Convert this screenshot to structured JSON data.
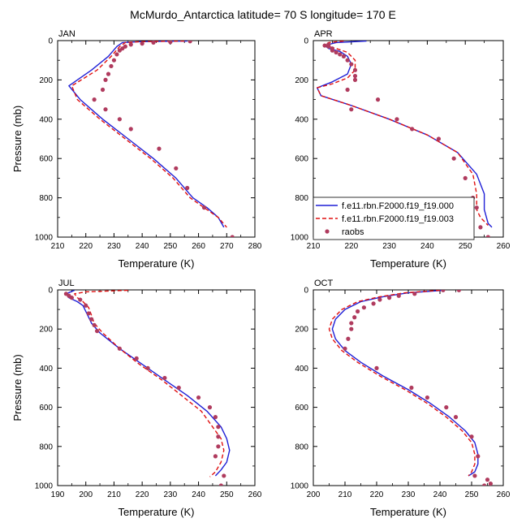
{
  "title": "McMurdo_Antarctica  latitude= 70 S longitude= 170 E",
  "legend": {
    "entries": [
      {
        "label": "f.e11.rbn.F2000.f19_f19.000",
        "color": "#1f1fd6",
        "style": "solid"
      },
      {
        "label": "f.e11.rbn.F2000.f19_f19.003",
        "color": "#e01010",
        "style": "dashed"
      },
      {
        "label": "raobs",
        "color": "#b03b5e",
        "style": "marker"
      }
    ]
  },
  "chart_data": [
    {
      "type": "line",
      "title": "JAN",
      "xlabel": "Temperature (K)",
      "ylabel": "Pressure (mb)",
      "xlim": [
        210,
        280
      ],
      "ylim": [
        1000,
        0
      ],
      "xticks": [
        "210",
        "220",
        "230",
        "240",
        "250",
        "260",
        "270",
        "280"
      ],
      "yticks": [
        "0",
        "200",
        "400",
        "600",
        "800",
        "1000"
      ],
      "series": [
        {
          "name": "f.e11.rbn.F2000.f19_f19.000",
          "color": "#1f1fd6",
          "dash": false,
          "x": [
            256,
            240,
            233,
            231,
            228,
            222,
            214,
            218,
            226,
            235,
            244,
            252,
            258,
            263,
            267,
            269
          ],
          "y": [
            2,
            5,
            10,
            30,
            80,
            150,
            230,
            300,
            400,
            500,
            600,
            700,
            800,
            850,
            900,
            950
          ]
        },
        {
          "name": "f.e11.rbn.F2000.f19_f19.003",
          "color": "#e01010",
          "dash": true,
          "x": [
            255,
            240,
            234,
            232,
            229,
            224,
            215,
            217,
            225,
            234,
            243,
            251,
            257,
            262,
            267,
            270
          ],
          "y": [
            2,
            5,
            10,
            30,
            80,
            150,
            230,
            300,
            400,
            500,
            600,
            700,
            800,
            850,
            900,
            950
          ]
        },
        {
          "name": "raobs",
          "color": "#b03b5e",
          "marker": true,
          "x": [
            257,
            250,
            244,
            240,
            236,
            234,
            233,
            232,
            231,
            230,
            229,
            228,
            227,
            226,
            227,
            223,
            232,
            236,
            246,
            252,
            256,
            262,
            272
          ],
          "y": [
            3,
            7,
            10,
            15,
            20,
            30,
            40,
            50,
            70,
            100,
            130,
            170,
            200,
            250,
            350,
            300,
            400,
            450,
            550,
            650,
            750,
            850,
            1000
          ]
        }
      ]
    },
    {
      "type": "line",
      "title": "APR",
      "xlabel": "Temperature (K)",
      "ylabel": "",
      "xlim": [
        210,
        260
      ],
      "ylim": [
        1000,
        0
      ],
      "xticks": [
        "210",
        "220",
        "230",
        "240",
        "250",
        "260"
      ],
      "yticks": [
        "0",
        "200",
        "400",
        "600",
        "800",
        "1000"
      ],
      "series": [
        {
          "name": "f.e11.rbn.F2000.f19_f19.000",
          "color": "#1f1fd6",
          "dash": false,
          "x": [
            224,
            216,
            213,
            214,
            217,
            219,
            220,
            219,
            215,
            211,
            212,
            220,
            230,
            240,
            248,
            253,
            255,
            255,
            256,
            257
          ],
          "y": [
            2,
            10,
            25,
            40,
            55,
            80,
            120,
            170,
            210,
            240,
            280,
            330,
            400,
            480,
            570,
            680,
            780,
            860,
            930,
            950
          ]
        },
        {
          "name": "f.e11.rbn.F2000.f19_f19.003",
          "color": "#e01010",
          "dash": true,
          "x": [
            218,
            214,
            213,
            216,
            219,
            221,
            221,
            219,
            215,
            211,
            212,
            220,
            230,
            240,
            248,
            252,
            253,
            253,
            254,
            256
          ],
          "y": [
            2,
            10,
            25,
            40,
            60,
            100,
            150,
            190,
            220,
            240,
            280,
            330,
            400,
            480,
            570,
            680,
            780,
            860,
            900,
            940
          ]
        },
        {
          "name": "raobs",
          "color": "#b03b5e",
          "marker": true,
          "x": [
            214,
            213,
            214,
            215,
            215,
            216,
            217,
            218,
            219,
            220,
            221,
            221,
            221,
            219,
            220,
            227,
            232,
            236,
            243,
            247,
            250,
            252,
            253,
            254,
            256
          ],
          "y": [
            20,
            25,
            30,
            40,
            50,
            60,
            70,
            80,
            100,
            120,
            150,
            180,
            200,
            250,
            350,
            300,
            400,
            450,
            500,
            600,
            700,
            800,
            850,
            950,
            1000
          ]
        }
      ]
    },
    {
      "type": "line",
      "title": "JUL",
      "xlabel": "Temperature (K)",
      "ylabel": "Pressure (mb)",
      "xlim": [
        190,
        260
      ],
      "ylim": [
        1000,
        0
      ],
      "xticks": [
        "190",
        "200",
        "210",
        "220",
        "230",
        "240",
        "250",
        "260"
      ],
      "yticks": [
        "0",
        "200",
        "400",
        "600",
        "800",
        "1000"
      ],
      "series": [
        {
          "name": "f.e11.rbn.F2000.f19_f19.000",
          "color": "#1f1fd6",
          "dash": false,
          "x": [
            196,
            193,
            194,
            197,
            199,
            200,
            201,
            202,
            205,
            212,
            220,
            228,
            236,
            243,
            248,
            250,
            251,
            250,
            248,
            246
          ],
          "y": [
            2,
            20,
            40,
            60,
            80,
            110,
            140,
            170,
            220,
            300,
            380,
            460,
            540,
            620,
            700,
            760,
            820,
            880,
            920,
            950
          ]
        },
        {
          "name": "f.e11.rbn.F2000.f19_f19.003",
          "color": "#e01010",
          "dash": true,
          "x": [
            215,
            200,
            196,
            197,
            199,
            201,
            202,
            203,
            206,
            212,
            219,
            227,
            234,
            241,
            245,
            248,
            249,
            248,
            246,
            244
          ],
          "y": [
            2,
            10,
            20,
            40,
            60,
            90,
            130,
            170,
            220,
            300,
            380,
            460,
            540,
            620,
            700,
            760,
            820,
            880,
            930,
            955
          ]
        },
        {
          "name": "raobs",
          "color": "#b03b5e",
          "marker": true,
          "x": [
            193,
            194,
            195,
            198,
            200,
            201,
            202,
            203,
            204,
            212,
            218,
            222,
            228,
            233,
            240,
            244,
            246,
            247,
            247,
            247,
            246,
            249,
            248
          ],
          "y": [
            20,
            30,
            40,
            50,
            80,
            120,
            150,
            180,
            210,
            300,
            350,
            400,
            450,
            500,
            550,
            600,
            650,
            700,
            750,
            800,
            850,
            950,
            1000
          ]
        }
      ]
    },
    {
      "type": "line",
      "title": "OCT",
      "xlabel": "Temperature (K)",
      "ylabel": "",
      "xlim": [
        200,
        260
      ],
      "ylim": [
        1000,
        0
      ],
      "xticks": [
        "200",
        "210",
        "220",
        "230",
        "240",
        "250",
        "260"
      ],
      "yticks": [
        "0",
        "200",
        "400",
        "600",
        "800",
        "1000"
      ],
      "series": [
        {
          "name": "f.e11.rbn.F2000.f19_f19.000",
          "color": "#1f1fd6",
          "dash": false,
          "x": [
            241,
            230,
            222,
            215,
            210,
            207,
            206,
            207,
            210,
            215,
            222,
            230,
            237,
            243,
            248,
            251,
            252,
            252,
            251,
            249
          ],
          "y": [
            2,
            15,
            35,
            60,
            100,
            150,
            200,
            250,
            310,
            370,
            440,
            510,
            580,
            650,
            720,
            780,
            840,
            890,
            930,
            950
          ]
        },
        {
          "name": "f.e11.rbn.F2000.f19_f19.003",
          "color": "#e01010",
          "dash": true,
          "x": [
            240,
            229,
            221,
            214,
            209,
            206,
            205,
            206,
            209,
            214,
            221,
            229,
            236,
            242,
            247,
            250,
            251,
            251,
            250,
            249
          ],
          "y": [
            2,
            15,
            35,
            60,
            100,
            150,
            200,
            250,
            310,
            370,
            440,
            510,
            580,
            650,
            720,
            780,
            840,
            890,
            930,
            950
          ]
        },
        {
          "name": "raobs",
          "color": "#b03b5e",
          "marker": true,
          "x": [
            246,
            241,
            232,
            227,
            224,
            221,
            219,
            216,
            214,
            213,
            212,
            212,
            211,
            210,
            220,
            231,
            236,
            242,
            245,
            250,
            252,
            251,
            254,
            255,
            256
          ],
          "y": [
            1,
            1,
            20,
            30,
            40,
            50,
            70,
            90,
            110,
            140,
            170,
            200,
            250,
            300,
            400,
            500,
            550,
            600,
            650,
            750,
            850,
            950,
            1000,
            970,
            990
          ]
        }
      ]
    }
  ]
}
